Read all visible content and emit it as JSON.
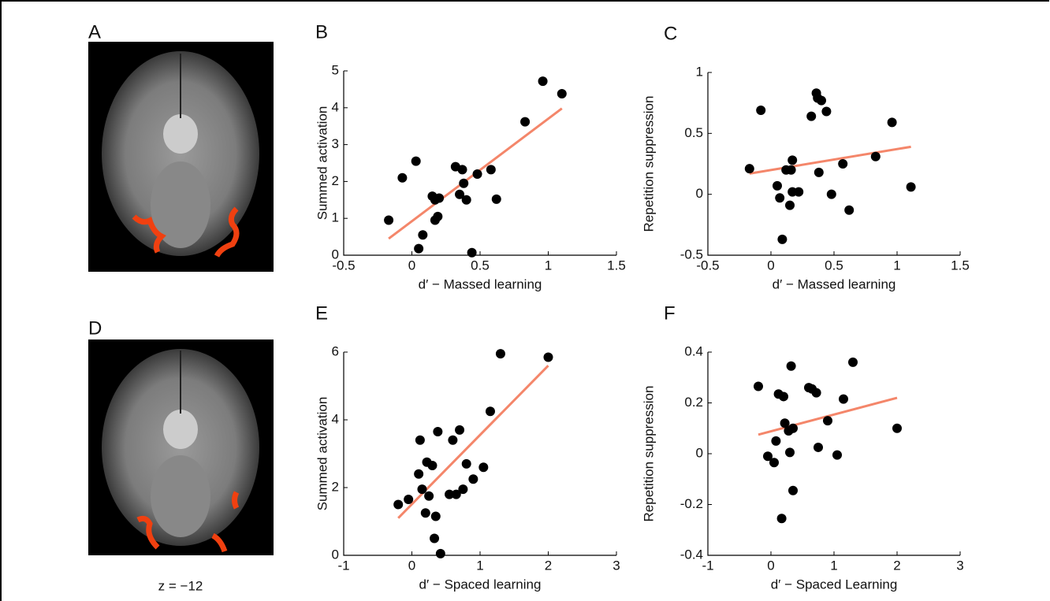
{
  "figure": {
    "panel_labels": [
      "A",
      "D"
    ],
    "caption": "z = −12"
  },
  "chart_data": [
    {
      "type": "scatter",
      "panel": "B",
      "x_label": "d′ − Massed learning",
      "y_label": "Summed activation",
      "xlim": [
        -0.5,
        1.5
      ],
      "xticks": [
        -0.5,
        0,
        0.5,
        1,
        1.5
      ],
      "ylim": [
        0,
        5
      ],
      "yticks": [
        0,
        1,
        2,
        3,
        4,
        5
      ],
      "color": "#000000",
      "x": [
        -0.17,
        -0.07,
        0.03,
        0.08,
        0.05,
        0.15,
        0.17,
        0.17,
        0.19,
        0.2,
        0.32,
        0.35,
        0.37,
        0.38,
        0.4,
        0.44,
        0.48,
        0.58,
        0.62,
        0.83,
        0.96,
        1.1
      ],
      "values": [
        0.95,
        2.1,
        2.55,
        0.55,
        0.18,
        1.6,
        1.5,
        0.95,
        1.05,
        1.55,
        2.4,
        1.65,
        2.32,
        1.95,
        1.5,
        0.07,
        2.2,
        2.32,
        1.52,
        3.62,
        4.72,
        4.38
      ],
      "fit": {
        "color": "#f4866a",
        "x": [
          -0.17,
          1.1
        ],
        "values": [
          0.45,
          3.98
        ]
      }
    },
    {
      "type": "scatter",
      "panel": "C",
      "x_label": "d′ − Massed learning",
      "y_label": "Repetition suppression",
      "xlim": [
        -0.5,
        1.5
      ],
      "xticks": [
        -0.5,
        0,
        0.5,
        1,
        1.5
      ],
      "ylim": [
        -0.5,
        1
      ],
      "yticks": [
        -0.5,
        0,
        0.5,
        1
      ],
      "color": "#000000",
      "x": [
        -0.17,
        -0.08,
        0.05,
        0.07,
        0.09,
        0.12,
        0.15,
        0.16,
        0.17,
        0.17,
        0.22,
        0.32,
        0.36,
        0.37,
        0.4,
        0.38,
        0.44,
        0.48,
        0.57,
        0.62,
        0.83,
        0.96,
        1.11
      ],
      "values": [
        0.21,
        0.69,
        0.07,
        -0.03,
        -0.37,
        0.2,
        -0.09,
        0.2,
        0.28,
        0.02,
        0.02,
        0.64,
        0.83,
        0.79,
        0.77,
        0.18,
        0.68,
        0,
        0.25,
        -0.13,
        0.31,
        0.59,
        0.06
      ],
      "fit": {
        "color": "#f4866a",
        "x": [
          -0.17,
          1.11
        ],
        "values": [
          0.17,
          0.39
        ]
      }
    },
    {
      "type": "scatter",
      "panel": "E",
      "x_label": "d′ − Spaced learning",
      "y_label": "Summed activation",
      "xlim": [
        -1,
        3
      ],
      "xticks": [
        -1,
        0,
        1,
        2,
        3
      ],
      "ylim": [
        0,
        6
      ],
      "yticks": [
        0,
        2,
        4,
        6
      ],
      "color": "#000000",
      "x": [
        -0.2,
        -0.05,
        0.1,
        0.12,
        0.15,
        0.2,
        0.22,
        0.25,
        0.3,
        0.33,
        0.35,
        0.38,
        0.42,
        0.55,
        0.6,
        0.65,
        0.7,
        0.75,
        0.8,
        0.9,
        1.05,
        1.15,
        1.3,
        2.0
      ],
      "values": [
        1.5,
        1.65,
        2.4,
        3.4,
        1.95,
        1.25,
        2.75,
        1.75,
        2.65,
        0.5,
        1.15,
        3.65,
        0.05,
        1.8,
        3.4,
        1.8,
        3.7,
        1.95,
        2.7,
        2.25,
        2.6,
        4.25,
        5.95,
        5.85
      ],
      "fit": {
        "color": "#f4866a",
        "x": [
          -0.2,
          2.0
        ],
        "values": [
          1.1,
          5.6
        ]
      }
    },
    {
      "type": "scatter",
      "panel": "F",
      "x_label": "d′ − Spaced Learning",
      "y_label": "Repetition suppression",
      "xlim": [
        -1,
        3
      ],
      "xticks": [
        -1,
        0,
        1,
        2,
        3
      ],
      "ylim": [
        -0.4,
        0.4
      ],
      "yticks": [
        -0.4,
        -0.2,
        0,
        0.2,
        0.4
      ],
      "color": "#000000",
      "x": [
        -0.2,
        -0.05,
        0.05,
        0.08,
        0.12,
        0.17,
        0.2,
        0.22,
        0.28,
        0.3,
        0.32,
        0.35,
        0.35,
        0.6,
        0.65,
        0.72,
        0.75,
        0.9,
        1.05,
        1.15,
        1.3,
        2.0
      ],
      "values": [
        0.265,
        -0.01,
        -0.035,
        0.05,
        0.235,
        -0.255,
        0.225,
        0.12,
        0.09,
        0.005,
        0.345,
        -0.145,
        0.1,
        0.26,
        0.255,
        0.24,
        0.025,
        0.13,
        -0.005,
        0.215,
        0.36,
        0.1
      ],
      "fit": {
        "color": "#f4866a",
        "x": [
          -0.2,
          2.0
        ],
        "values": [
          0.075,
          0.22
        ]
      }
    }
  ]
}
